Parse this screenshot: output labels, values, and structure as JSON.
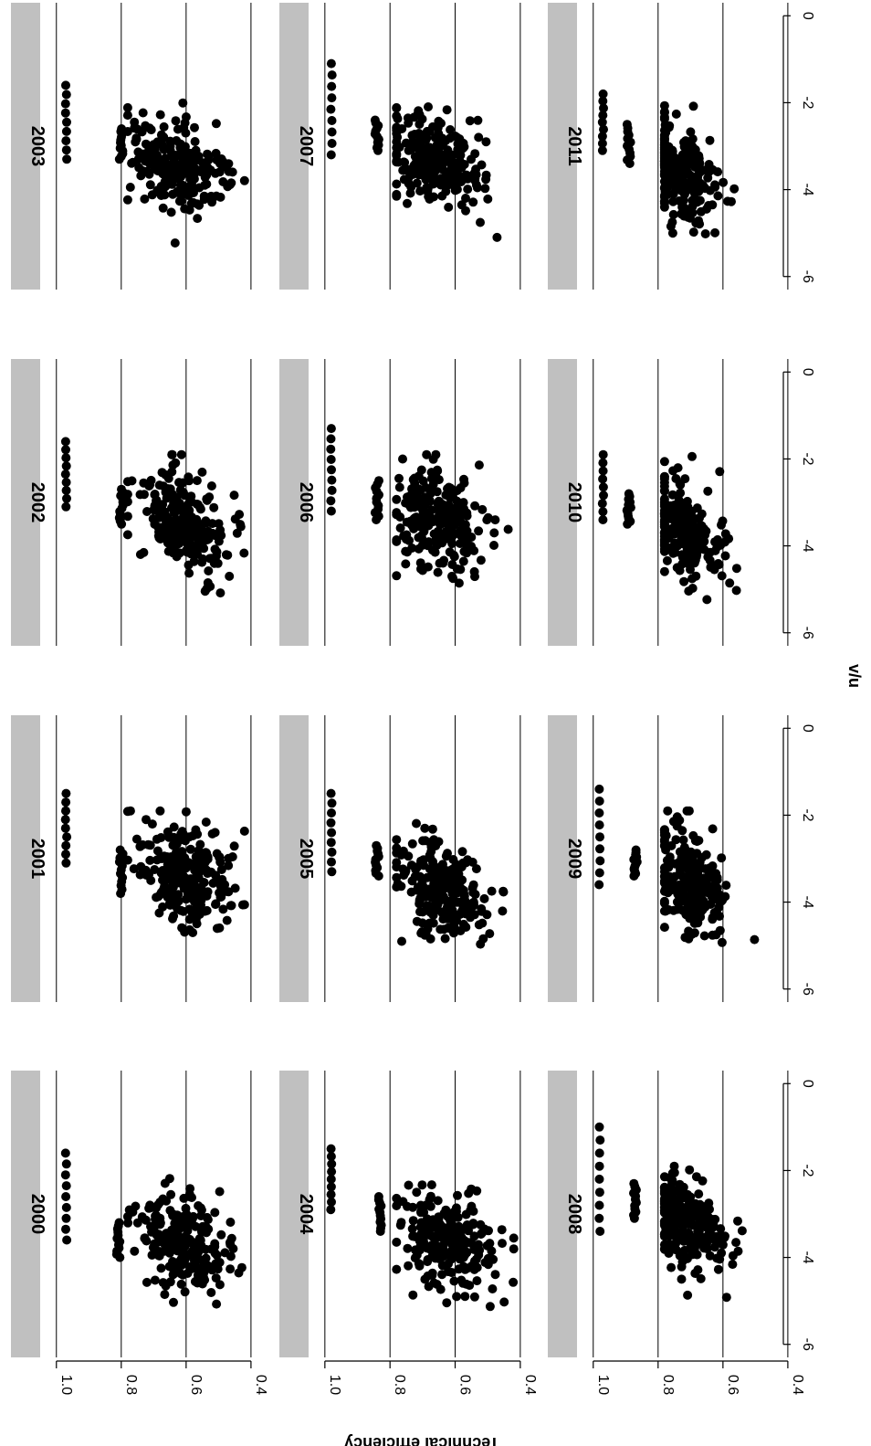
{
  "chart_data": {
    "type": "scatter",
    "layout": "4 columns x 3 rows, figure rotated 90 degrees",
    "xlabel": "v/u",
    "ylabel": "Technical efficiency",
    "xlim": [
      -6.3,
      0.3
    ],
    "ylim": [
      0.38,
      1.05
    ],
    "x_ticks": [
      -6,
      -4,
      -2,
      0
    ],
    "x_tick_labels": [
      "-6",
      "-4",
      "-2",
      "0"
    ],
    "y_ticks": [
      0.4,
      0.6,
      0.8,
      1.0
    ],
    "y_tick_labels": [
      "0.4",
      "0.6",
      "0.8",
      "1.0"
    ],
    "grid": "horizontal lines at y ticks",
    "panels": [
      {
        "year": "2000",
        "top_cluster": {
          "y": 0.97,
          "x_range": [
            -3.6,
            -1.6
          ]
        },
        "upper_cluster": {
          "y": 0.81,
          "x_range": [
            -4.0,
            -3.2
          ]
        },
        "cloud": {
          "x_center": -3.7,
          "x_sd": 0.6,
          "y_center": 0.6,
          "y_sd": 0.07
        }
      },
      {
        "year": "2001",
        "top_cluster": {
          "y": 0.97,
          "x_range": [
            -3.1,
            -1.5
          ]
        },
        "upper_cluster": {
          "y": 0.8,
          "x_range": [
            -3.8,
            -2.8
          ]
        },
        "cloud": {
          "x_center": -3.4,
          "x_sd": 0.6,
          "y_center": 0.6,
          "y_sd": 0.07
        }
      },
      {
        "year": "2002",
        "top_cluster": {
          "y": 0.97,
          "x_range": [
            -3.1,
            -1.6
          ]
        },
        "upper_cluster": {
          "y": 0.8,
          "x_range": [
            -3.5,
            -2.7
          ]
        },
        "cloud": {
          "x_center": -3.5,
          "x_sd": 0.6,
          "y_center": 0.6,
          "y_sd": 0.07
        }
      },
      {
        "year": "2003",
        "top_cluster": {
          "y": 0.97,
          "x_range": [
            -3.3,
            -1.6
          ]
        },
        "upper_cluster": {
          "y": 0.8,
          "x_range": [
            -3.3,
            -2.6
          ]
        },
        "cloud": {
          "x_center": -3.5,
          "x_sd": 0.55,
          "y_center": 0.62,
          "y_sd": 0.07
        }
      },
      {
        "year": "2004",
        "top_cluster": {
          "y": 0.98,
          "x_range": [
            -2.9,
            -1.5
          ]
        },
        "upper_cluster": {
          "y": 0.83,
          "x_range": [
            -3.4,
            -2.6
          ]
        },
        "cloud": {
          "x_center": -3.6,
          "x_sd": 0.6,
          "y_center": 0.63,
          "y_sd": 0.07
        }
      },
      {
        "year": "2005",
        "top_cluster": {
          "y": 0.98,
          "x_range": [
            -3.3,
            -1.5
          ]
        },
        "upper_cluster": {
          "y": 0.84,
          "x_range": [
            -3.4,
            -2.7
          ]
        },
        "cloud": {
          "x_center": -3.7,
          "x_sd": 0.6,
          "y_center": 0.64,
          "y_sd": 0.07
        }
      },
      {
        "year": "2006",
        "top_cluster": {
          "y": 0.98,
          "x_range": [
            -3.2,
            -1.3
          ]
        },
        "upper_cluster": {
          "y": 0.84,
          "x_range": [
            -3.4,
            -2.5
          ]
        },
        "cloud": {
          "x_center": -3.5,
          "x_sd": 0.6,
          "y_center": 0.65,
          "y_sd": 0.07
        }
      },
      {
        "year": "2007",
        "top_cluster": {
          "y": 0.98,
          "x_range": [
            -3.2,
            -1.1
          ]
        },
        "upper_cluster": {
          "y": 0.84,
          "x_range": [
            -3.1,
            -2.4
          ]
        },
        "cloud": {
          "x_center": -3.4,
          "x_sd": 0.55,
          "y_center": 0.66,
          "y_sd": 0.07
        }
      },
      {
        "year": "2008",
        "top_cluster": {
          "y": 0.98,
          "x_range": [
            -3.4,
            -1.0
          ]
        },
        "upper_cluster": {
          "y": 0.87,
          "x_range": [
            -3.1,
            -2.3
          ]
        },
        "cloud": {
          "x_center": -3.2,
          "x_sd": 0.55,
          "y_center": 0.71,
          "y_sd": 0.055
        }
      },
      {
        "year": "2009",
        "top_cluster": {
          "y": 0.98,
          "x_range": [
            -3.6,
            -1.4
          ]
        },
        "upper_cluster": {
          "y": 0.87,
          "x_range": [
            -3.4,
            -2.8
          ]
        },
        "cloud": {
          "x_center": -3.5,
          "x_sd": 0.6,
          "y_center": 0.71,
          "y_sd": 0.055
        }
      },
      {
        "year": "2010",
        "top_cluster": {
          "y": 0.97,
          "x_range": [
            -3.4,
            -1.9
          ]
        },
        "upper_cluster": {
          "y": 0.89,
          "x_range": [
            -3.5,
            -2.8
          ]
        },
        "cloud": {
          "x_center": -3.7,
          "x_sd": 0.55,
          "y_center": 0.72,
          "y_sd": 0.055
        }
      },
      {
        "year": "2011",
        "top_cluster": {
          "y": 0.97,
          "x_range": [
            -3.1,
            -1.8
          ]
        },
        "upper_cluster": {
          "y": 0.89,
          "x_range": [
            -3.4,
            -2.5
          ]
        },
        "cloud": {
          "x_center": -3.6,
          "x_sd": 0.55,
          "y_center": 0.73,
          "y_sd": 0.055
        }
      }
    ]
  }
}
